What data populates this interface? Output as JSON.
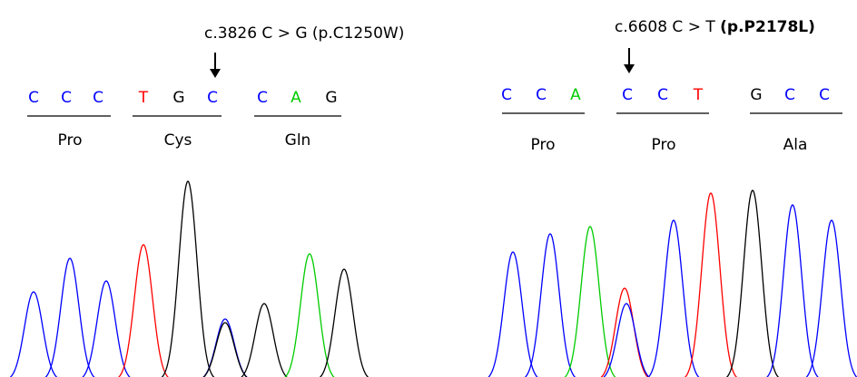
{
  "panels": [
    {
      "mutation": "c.3826 C > G",
      "protein": "(p.C1250W)",
      "protein_bold": false,
      "codons": [
        {
          "bases": [
            "C",
            "C",
            "C"
          ],
          "amino": "Pro"
        },
        {
          "bases": [
            "T",
            "G",
            "C"
          ],
          "amino": "Cys"
        },
        {
          "bases": [
            "C",
            "A",
            "G"
          ],
          "amino": "Gln"
        }
      ]
    },
    {
      "mutation": "c.6608 C > T",
      "protein": "(p.P2178L)",
      "protein_bold": true,
      "codons": [
        {
          "bases": [
            "C",
            "C",
            "A"
          ],
          "amino": "Pro"
        },
        {
          "bases": [
            "C",
            "C",
            "T"
          ],
          "amino": "Pro"
        },
        {
          "bases": [
            "G",
            "C",
            "C"
          ],
          "amino": "Ala"
        }
      ]
    }
  ]
}
